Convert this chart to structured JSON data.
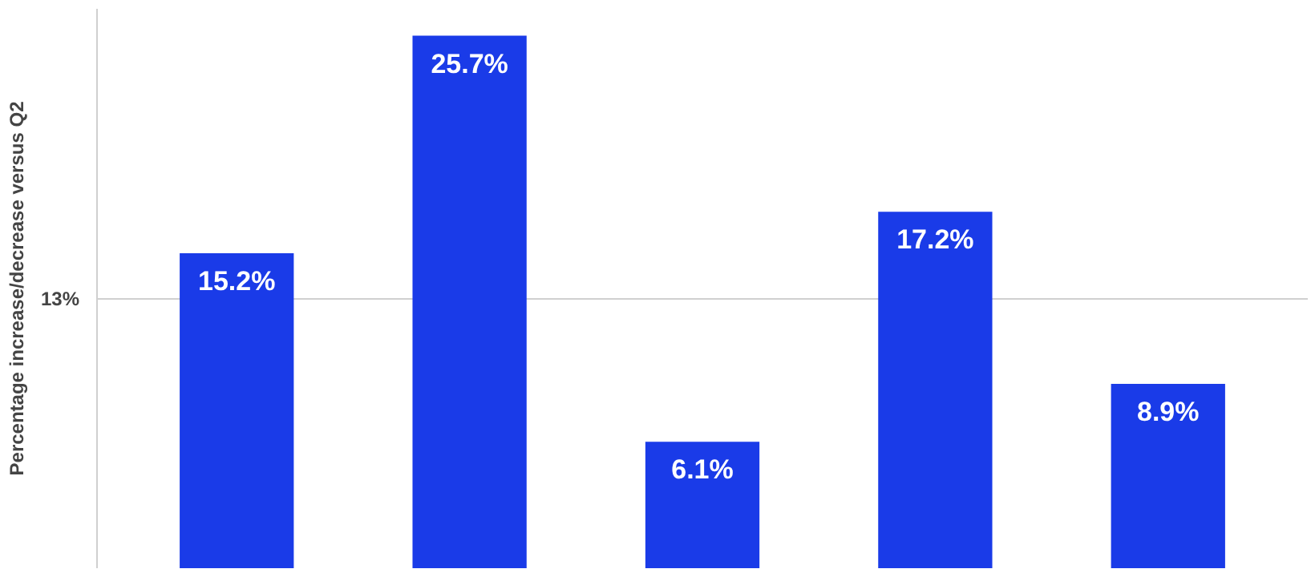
{
  "chart_data": {
    "type": "bar",
    "ylabel": "Percentage increase/decrease versus Q2",
    "categories": [
      null,
      null,
      null,
      null,
      null
    ],
    "values": [
      15.2,
      25.7,
      6.1,
      17.2,
      8.9
    ],
    "value_labels": [
      "15.2%",
      "25.7%",
      "6.1%",
      "17.2%",
      "8.9%"
    ],
    "color": "#1a3be8",
    "ylim": [
      0,
      27
    ],
    "yticks": [
      {
        "value": 13,
        "label": "13%"
      }
    ],
    "grid": "y",
    "tick_labels": "y"
  }
}
